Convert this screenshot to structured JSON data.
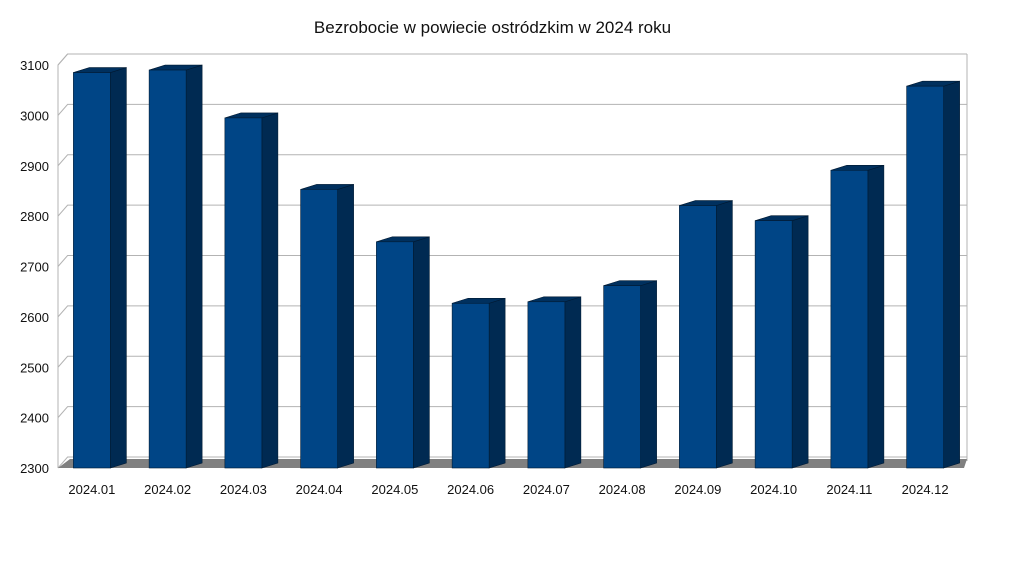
{
  "chart_data": {
    "type": "bar",
    "title": "Bezrobocie w powiecie ostródzkim w 2024 roku",
    "categories": [
      "2024.01",
      "2024.02",
      "2024.03",
      "2024.04",
      "2024.05",
      "2024.06",
      "2024.07",
      "2024.08",
      "2024.09",
      "2024.10",
      "2024.11",
      "2024.12"
    ],
    "values": [
      3085,
      3090,
      2995,
      2853,
      2749,
      2627,
      2630,
      2662,
      2821,
      2791,
      2891,
      3058
    ],
    "ylim": [
      2300,
      3100
    ],
    "yticks": [
      2300,
      2400,
      2500,
      2600,
      2700,
      2800,
      2900,
      3000,
      3100
    ],
    "grid": true,
    "style": "3d-bar",
    "colors": {
      "bar_front": "#004586",
      "bar_side": "#002a52",
      "bar_top": "#00305e",
      "floor": "#808080",
      "grid": "#b3b3b3"
    }
  }
}
